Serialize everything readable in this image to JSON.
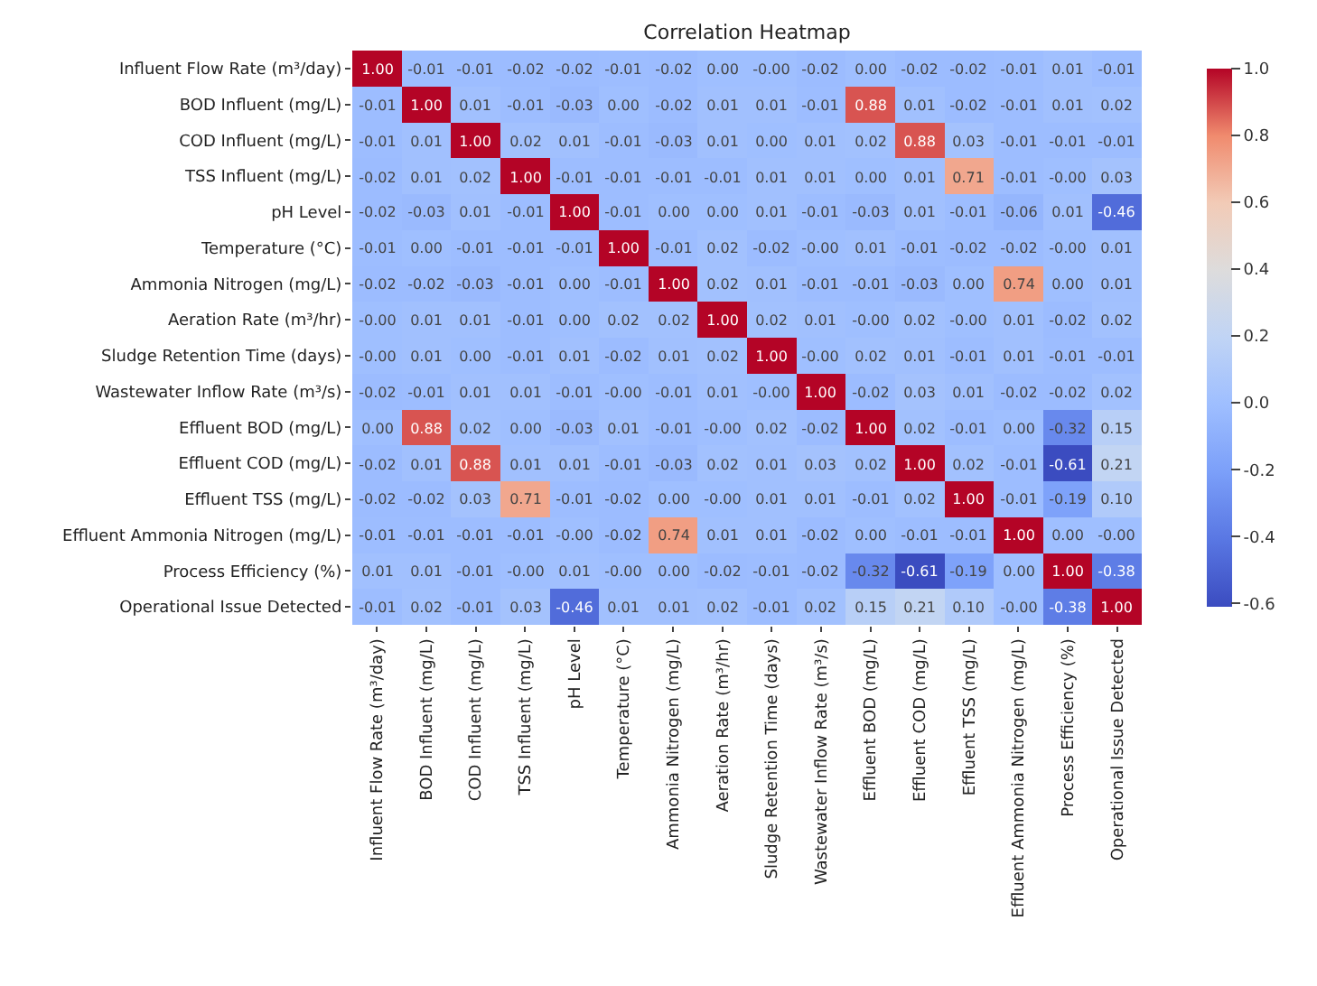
{
  "chart_data": {
    "type": "heatmap",
    "title": "Correlation Heatmap",
    "categories": [
      "Influent Flow Rate (m³/day)",
      "BOD Influent (mg/L)",
      "COD Influent (mg/L)",
      "TSS Influent (mg/L)",
      "pH Level",
      "Temperature (°C)",
      "Ammonia Nitrogen (mg/L)",
      "Aeration Rate (m³/hr)",
      "Sludge Retention Time (days)",
      "Wastewater Inflow Rate (m³/s)",
      "Effluent BOD (mg/L)",
      "Effluent COD (mg/L)",
      "Effluent TSS (mg/L)",
      "Effluent Ammonia Nitrogen (mg/L)",
      "Process Efficiency (%)",
      "Operational Issue Detected"
    ],
    "y_categories": [
      "Influent Flow Rate (m³/day)",
      "BOD Influent (mg/L)",
      "COD Influent (mg/L)",
      "TSS Influent (mg/L)",
      "pH Level",
      "Temperature (°C)",
      "Ammonia Nitrogen (mg/L)",
      "Aeration Rate (m³/hr)",
      "Sludge Retention Time (days)",
      "Wastewater Inflow Rate (m³/s)",
      "Effluent BOD (mg/L)",
      "Effluent COD (mg/L)",
      "Effluent TSS (mg/L)",
      "Effluent Ammonia Nitrogen (mg/L)",
      "Process Efficiency (%)",
      "Operational Issue Detected"
    ],
    "cells": [
      [
        1.0,
        -0.01,
        -0.01,
        -0.02,
        -0.02,
        -0.01,
        -0.02,
        0.0,
        0.0,
        -0.02,
        0.0,
        -0.02,
        -0.02,
        -0.01,
        0.01,
        -0.01
      ],
      [
        -0.01,
        1.0,
        0.01,
        -0.01,
        -0.03,
        0.0,
        -0.02,
        0.01,
        0.01,
        -0.01,
        0.88,
        0.01,
        -0.02,
        -0.01,
        0.01,
        0.02
      ],
      [
        -0.01,
        0.01,
        1.0,
        0.02,
        0.01,
        -0.01,
        -0.03,
        0.01,
        0.0,
        0.01,
        0.02,
        0.88,
        0.03,
        -0.01,
        -0.01,
        -0.01
      ],
      [
        -0.02,
        0.01,
        0.02,
        1.0,
        -0.01,
        -0.01,
        -0.01,
        -0.01,
        0.01,
        0.01,
        0.0,
        0.01,
        0.71,
        -0.01,
        0.0,
        0.03
      ],
      [
        -0.02,
        -0.03,
        0.01,
        -0.01,
        1.0,
        -0.01,
        0.0,
        0.0,
        0.01,
        -0.01,
        -0.03,
        0.01,
        -0.01,
        -0.06,
        0.01,
        -0.46
      ],
      [
        -0.01,
        0.0,
        -0.01,
        -0.01,
        -0.01,
        1.0,
        -0.01,
        0.02,
        -0.02,
        0.0,
        0.01,
        -0.01,
        -0.02,
        -0.02,
        0.0,
        0.01
      ],
      [
        -0.02,
        -0.02,
        -0.03,
        -0.01,
        0.0,
        -0.01,
        1.0,
        0.02,
        0.01,
        -0.01,
        -0.01,
        -0.03,
        0.0,
        0.74,
        0.0,
        0.01
      ],
      [
        0.0,
        0.01,
        0.01,
        -0.01,
        0.0,
        0.02,
        0.02,
        1.0,
        0.02,
        0.01,
        0.0,
        0.02,
        0.0,
        0.01,
        -0.02,
        0.02
      ],
      [
        0.0,
        0.01,
        0.0,
        -0.01,
        0.01,
        -0.02,
        0.01,
        0.02,
        1.0,
        0.0,
        0.02,
        0.01,
        -0.01,
        0.01,
        -0.01,
        -0.01
      ],
      [
        -0.02,
        -0.01,
        0.01,
        0.01,
        -0.01,
        0.0,
        -0.01,
        0.01,
        0.0,
        1.0,
        -0.02,
        0.03,
        0.01,
        -0.02,
        -0.02,
        0.02
      ],
      [
        0.0,
        0.88,
        0.02,
        0.0,
        -0.03,
        0.01,
        -0.01,
        0.0,
        0.02,
        -0.02,
        1.0,
        0.02,
        -0.01,
        0.0,
        -0.32,
        0.15
      ],
      [
        -0.02,
        0.01,
        0.88,
        0.01,
        0.01,
        -0.01,
        -0.03,
        0.02,
        0.01,
        0.03,
        0.02,
        1.0,
        0.02,
        -0.01,
        -0.61,
        0.21
      ],
      [
        -0.02,
        -0.02,
        0.03,
        0.71,
        -0.01,
        -0.02,
        0.0,
        0.0,
        0.01,
        0.01,
        -0.01,
        0.02,
        1.0,
        -0.01,
        -0.19,
        0.1
      ],
      [
        -0.01,
        -0.01,
        -0.01,
        -0.01,
        0.0,
        -0.02,
        0.74,
        0.01,
        0.01,
        -0.02,
        0.0,
        -0.01,
        -0.01,
        1.0,
        0.0,
        0.0
      ],
      [
        0.01,
        0.01,
        -0.01,
        0.0,
        0.01,
        0.0,
        0.0,
        -0.02,
        -0.01,
        -0.02,
        -0.32,
        -0.61,
        -0.19,
        0.0,
        1.0,
        -0.38
      ],
      [
        -0.01,
        0.02,
        -0.01,
        0.03,
        -0.46,
        0.01,
        0.01,
        0.02,
        -0.01,
        0.02,
        0.15,
        0.21,
        0.1,
        0.0,
        -0.38,
        1.0
      ]
    ],
    "cell_labels": [
      [
        "1.00",
        "-0.01",
        "-0.01",
        "-0.02",
        "-0.02",
        "-0.01",
        "-0.02",
        "0.00",
        "-0.00",
        "-0.02",
        "0.00",
        "-0.02",
        "-0.02",
        "-0.01",
        "0.01",
        "-0.01"
      ],
      [
        "-0.01",
        "1.00",
        "0.01",
        "-0.01",
        "-0.03",
        "0.00",
        "-0.02",
        "0.01",
        "0.01",
        "-0.01",
        "0.88",
        "0.01",
        "-0.02",
        "-0.01",
        "0.01",
        "0.02"
      ],
      [
        "-0.01",
        "0.01",
        "1.00",
        "0.02",
        "0.01",
        "-0.01",
        "-0.03",
        "0.01",
        "0.00",
        "0.01",
        "0.02",
        "0.88",
        "0.03",
        "-0.01",
        "-0.01",
        "-0.01"
      ],
      [
        "-0.02",
        "0.01",
        "0.02",
        "1.00",
        "-0.01",
        "-0.01",
        "-0.01",
        "-0.01",
        "0.01",
        "0.01",
        "0.00",
        "0.01",
        "0.71",
        "-0.01",
        "-0.00",
        "0.03"
      ],
      [
        "-0.02",
        "-0.03",
        "0.01",
        "-0.01",
        "1.00",
        "-0.01",
        "0.00",
        "0.00",
        "0.01",
        "-0.01",
        "-0.03",
        "0.01",
        "-0.01",
        "-0.06",
        "0.01",
        "-0.46"
      ],
      [
        "-0.01",
        "0.00",
        "-0.01",
        "-0.01",
        "-0.01",
        "1.00",
        "-0.01",
        "0.02",
        "-0.02",
        "-0.00",
        "0.01",
        "-0.01",
        "-0.02",
        "-0.02",
        "-0.00",
        "0.01"
      ],
      [
        "-0.02",
        "-0.02",
        "-0.03",
        "-0.01",
        "0.00",
        "-0.01",
        "1.00",
        "0.02",
        "0.01",
        "-0.01",
        "-0.01",
        "-0.03",
        "0.00",
        "0.74",
        "0.00",
        "0.01"
      ],
      [
        "-0.00",
        "0.01",
        "0.01",
        "-0.01",
        "0.00",
        "0.02",
        "0.02",
        "1.00",
        "0.02",
        "0.01",
        "-0.00",
        "0.02",
        "-0.00",
        "0.01",
        "-0.02",
        "0.02"
      ],
      [
        "-0.00",
        "0.01",
        "0.00",
        "-0.01",
        "0.01",
        "-0.02",
        "0.01",
        "0.02",
        "1.00",
        "-0.00",
        "0.02",
        "0.01",
        "-0.01",
        "0.01",
        "-0.01",
        "-0.01"
      ],
      [
        "-0.02",
        "-0.01",
        "0.01",
        "0.01",
        "-0.01",
        "-0.00",
        "-0.01",
        "0.01",
        "-0.00",
        "1.00",
        "-0.02",
        "0.03",
        "0.01",
        "-0.02",
        "-0.02",
        "0.02"
      ],
      [
        "0.00",
        "0.88",
        "0.02",
        "0.00",
        "-0.03",
        "0.01",
        "-0.01",
        "-0.00",
        "0.02",
        "-0.02",
        "1.00",
        "0.02",
        "-0.01",
        "0.00",
        "-0.32",
        "0.15"
      ],
      [
        "-0.02",
        "0.01",
        "0.88",
        "0.01",
        "0.01",
        "-0.01",
        "-0.03",
        "0.02",
        "0.01",
        "0.03",
        "0.02",
        "1.00",
        "0.02",
        "-0.01",
        "-0.61",
        "0.21"
      ],
      [
        "-0.02",
        "-0.02",
        "0.03",
        "0.71",
        "-0.01",
        "-0.02",
        "0.00",
        "-0.00",
        "0.01",
        "0.01",
        "-0.01",
        "0.02",
        "1.00",
        "-0.01",
        "-0.19",
        "0.10"
      ],
      [
        "-0.01",
        "-0.01",
        "-0.01",
        "-0.01",
        "-0.00",
        "-0.02",
        "0.74",
        "0.01",
        "0.01",
        "-0.02",
        "0.00",
        "-0.01",
        "-0.01",
        "1.00",
        "0.00",
        "-0.00"
      ],
      [
        "0.01",
        "0.01",
        "-0.01",
        "-0.00",
        "0.01",
        "-0.00",
        "0.00",
        "-0.02",
        "-0.01",
        "-0.02",
        "-0.32",
        "-0.61",
        "-0.19",
        "0.00",
        "1.00",
        "-0.38"
      ],
      [
        "-0.01",
        "0.02",
        "-0.01",
        "0.03",
        "-0.46",
        "0.01",
        "0.01",
        "0.02",
        "-0.01",
        "0.02",
        "0.15",
        "0.21",
        "0.10",
        "-0.00",
        "-0.38",
        "1.00"
      ]
    ],
    "clim": [
      -0.61,
      1.0
    ],
    "cticks": [
      {
        "value": -0.6,
        "label": "-0.6"
      },
      {
        "value": -0.4,
        "label": "-0.4"
      },
      {
        "value": -0.2,
        "label": "-0.2"
      },
      {
        "value": 0,
        "label": "0.0"
      },
      {
        "value": 0.2,
        "label": "0.2"
      },
      {
        "value": 0.4,
        "label": "0.4"
      },
      {
        "value": 0.6,
        "label": "0.6"
      },
      {
        "value": 0.8,
        "label": "0.8"
      },
      {
        "value": 1,
        "label": "1.0"
      }
    ]
  }
}
